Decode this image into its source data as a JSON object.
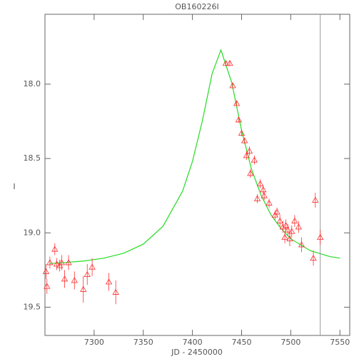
{
  "chart_data": {
    "type": "scatter",
    "title": "OB160226I",
    "x_label": "JD - 2450000",
    "y_label": "I",
    "xlim": [
      7250,
      7560
    ],
    "ylim": [
      19.69,
      17.53
    ],
    "xticks": [
      7300,
      7350,
      7400,
      7450,
      7500,
      7550
    ],
    "yticks": [
      {
        "value": 18,
        "label": "18.0"
      },
      18.5,
      {
        "value": 19,
        "label": "19.0"
      },
      19.5
    ],
    "points": {
      "color": "#ff3030",
      "x": [
        7251,
        7252,
        7255,
        7260,
        7262,
        7265,
        7267,
        7270,
        7274,
        7280,
        7289,
        7293,
        7298,
        7315,
        7322,
        7434,
        7438,
        7441,
        7445,
        7447,
        7450,
        7453,
        7455,
        7458,
        7459,
        7463,
        7466,
        7469,
        7472,
        7473,
        7478,
        7484,
        7486,
        7489,
        7492,
        7494,
        7495,
        7497,
        7499,
        7501,
        7504,
        7508,
        7511,
        7523,
        7525,
        7530
      ],
      "values": [
        19.26,
        19.36,
        19.2,
        19.11,
        19.21,
        19.22,
        19.2,
        19.31,
        19.2,
        19.32,
        19.38,
        19.28,
        19.23,
        19.33,
        19.4,
        17.86,
        17.86,
        18.01,
        18.13,
        18.24,
        18.33,
        18.38,
        18.48,
        18.45,
        18.6,
        18.51,
        18.77,
        18.67,
        18.71,
        18.75,
        18.8,
        18.88,
        18.86,
        18.92,
        18.96,
        19.03,
        18.95,
        18.98,
        19.04,
        18.99,
        18.92,
        18.96,
        19.08,
        19.17,
        18.78,
        19.03
      ],
      "errors": [
        0.05,
        0.05,
        0.04,
        0.04,
        0.04,
        0.04,
        0.05,
        0.06,
        0.05,
        0.06,
        0.09,
        0.07,
        0.06,
        0.06,
        0.08,
        0.02,
        0.02,
        0.02,
        0.02,
        0.02,
        0.02,
        0.02,
        0.03,
        0.03,
        0.03,
        0.03,
        0.03,
        0.03,
        0.03,
        0.03,
        0.03,
        0.03,
        0.03,
        0.04,
        0.04,
        0.04,
        0.04,
        0.04,
        0.05,
        0.04,
        0.04,
        0.04,
        0.05,
        0.05,
        0.05,
        0.05
      ]
    },
    "model": {
      "color": "#22dd22",
      "x": [
        7255,
        7270,
        7290,
        7310,
        7330,
        7350,
        7370,
        7390,
        7400,
        7410,
        7420,
        7429,
        7440,
        7450,
        7460,
        7470,
        7480,
        7490,
        7500,
        7520,
        7540,
        7550
      ],
      "values": [
        19.206,
        19.2,
        19.189,
        19.17,
        19.137,
        19.076,
        18.956,
        18.72,
        18.52,
        18.25,
        17.93,
        17.77,
        17.99,
        18.31,
        18.57,
        18.75,
        18.88,
        18.97,
        19.04,
        19.12,
        19.16,
        19.17
      ]
    },
    "vline": {
      "x": 7530,
      "color": "#999999"
    }
  }
}
